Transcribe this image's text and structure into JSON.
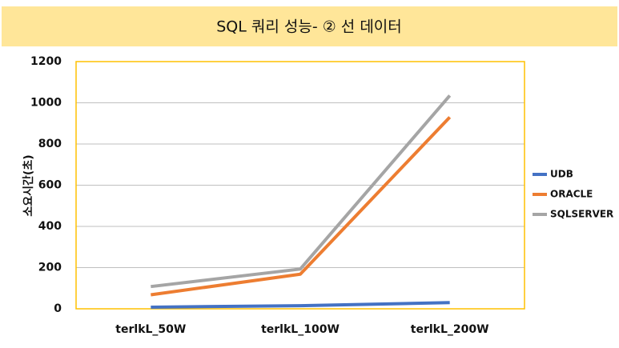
{
  "chart_data": {
    "type": "line",
    "title": "SQL 쿼리 성능- ② 선 데이터",
    "y_label": "소요시간(초)",
    "categories": [
      "terlkL_50W",
      "terlkL_100W",
      "terlkL_200W"
    ],
    "series": [
      {
        "name": "UDB",
        "color": "#4472c4",
        "values": [
          8,
          15,
          30
        ]
      },
      {
        "name": "ORACLE",
        "color": "#ed7d31",
        "values": [
          68,
          168,
          930
        ]
      },
      {
        "name": "SQLSERVER",
        "color": "#a5a5a5",
        "values": [
          108,
          193,
          1035
        ]
      }
    ],
    "ylim": [
      0,
      1200
    ],
    "yticks": [
      0,
      200,
      400,
      600,
      800,
      1000,
      1200
    ],
    "grid": true,
    "legend": "right"
  }
}
